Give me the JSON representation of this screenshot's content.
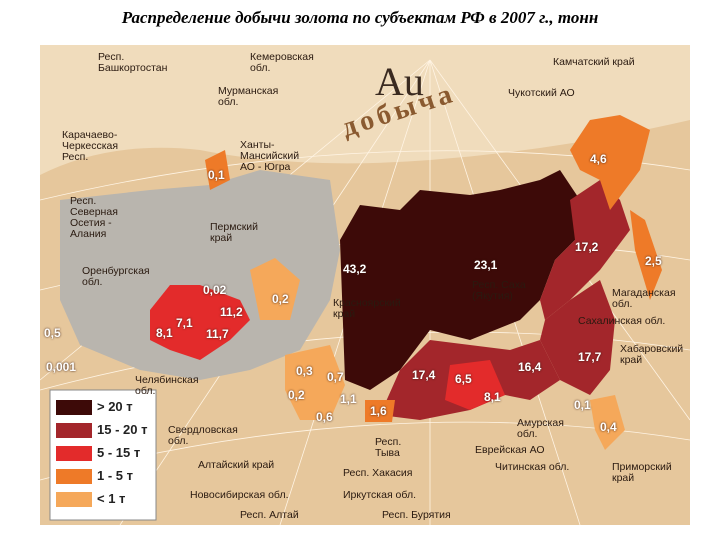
{
  "title": "Распределение добычи золота по субъектам РФ в 2007 г., тонн",
  "emblem": {
    "symbol": "Au",
    "word": "добыча"
  },
  "legend": [
    {
      "label": "> 20 т",
      "color": "#3d0a08"
    },
    {
      "label": "15 - 20 т",
      "color": "#a3262b"
    },
    {
      "label": "5 - 15 т",
      "color": "#e32b2b"
    },
    {
      "label": "1 - 5 т",
      "color": "#ee7a28"
    },
    {
      "label": "< 1 т",
      "color": "#f5a85a"
    }
  ],
  "region_labels": [
    "Респ.\nБашкортостан",
    "Кемеровская\nобл.",
    "Камчатский край",
    "Мурманская\nобл.",
    "Чукотский АО",
    "Карачаево-\nЧеркесская\nРесп.",
    "Ханты-\nМансийский\nАО - Югра",
    "Респ.\nСеверная\nОсетия -\nАлания",
    "Пермский\nкрай",
    "Оренбургская\nобл.",
    "Магаданская\nобл.",
    "Сахалинская обл.",
    "Хабаровский\nкрай",
    "Красноярский\nкрай",
    "Респ. Саха\n(Якутия)",
    "Челябинская\nобл.",
    "Свердловская\nобл.",
    "Амурская\nобл.",
    "Еврейская АО",
    "Приморский\nкрай",
    "Алтайский край",
    "Читинская обл.",
    "Респ.\nТыва",
    "Респ. Хакасия",
    "Новосибирская обл.",
    "Иркутская обл.",
    "Респ. Алтай",
    "Респ. Бурятия"
  ],
  "value_labels": [
    "43,2",
    "23,1",
    "4,6",
    "17,2",
    "2,5",
    "17,7",
    "16,4",
    "8,1",
    "6,5",
    "17,4",
    "1,6",
    "1,1",
    "0,6",
    "0,7",
    "0,3",
    "0,2",
    "0,2",
    "0,02",
    "11,2",
    "11,7",
    "7,1",
    "8,1",
    "0,5",
    "0,001",
    "0,1",
    "0,1",
    "0,4"
  ]
}
